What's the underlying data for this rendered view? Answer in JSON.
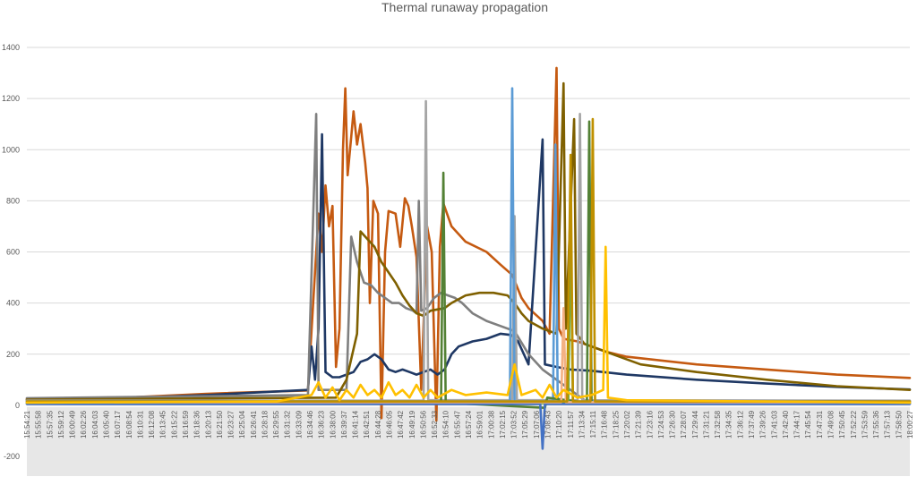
{
  "chart_data": {
    "type": "line",
    "title": "Thermal runaway propagation",
    "xlabel": "",
    "ylabel": "",
    "ylim": [
      -200,
      1400
    ],
    "yticks": [
      -200,
      0,
      200,
      400,
      600,
      800,
      1000,
      1200,
      1400
    ],
    "grid": true,
    "legend": "none",
    "x_start": "15:54:21",
    "x_end": "18:00:27",
    "xtick_labels": [
      "15:54:21",
      "15:55:58",
      "15:57:35",
      "15:59:12",
      "16:00:49",
      "16:02:26",
      "16:04:03",
      "16:05:40",
      "16:07:17",
      "16:08:54",
      "16:10:31",
      "16:12:08",
      "16:13:45",
      "16:15:22",
      "16:16:59",
      "16:18:36",
      "16:20:13",
      "16:21:50",
      "16:23:27",
      "16:25:04",
      "16:26:41",
      "16:28:18",
      "16:29:55",
      "16:31:32",
      "16:33:09",
      "16:34:46",
      "16:36:23",
      "16:38:00",
      "16:39:37",
      "16:41:14",
      "16:42:51",
      "16:44:28",
      "16:46:05",
      "16:47:42",
      "16:49:19",
      "16:50:56",
      "16:52:33",
      "16:54:10",
      "16:55:47",
      "16:57:24",
      "16:59:01",
      "17:00:38",
      "17:02:15",
      "17:03:52",
      "17:05:29",
      "17:07:06",
      "17:08:43",
      "17:10:20",
      "17:11:57",
      "17:13:34",
      "17:15:11",
      "17:16:48",
      "17:18:25",
      "17:20:02",
      "17:21:39",
      "17:23:16",
      "17:24:53",
      "17:26:30",
      "17:28:07",
      "17:29:44",
      "17:31:21",
      "17:32:58",
      "17:34:35",
      "17:36:12",
      "17:37:49",
      "17:39:26",
      "17:41:03",
      "17:42:40",
      "17:44:17",
      "17:45:54",
      "17:47:31",
      "17:49:08",
      "17:50:45",
      "17:52:22",
      "17:53:59",
      "17:55:36",
      "17:57:13",
      "17:58:50",
      "18:00:27"
    ],
    "series": [
      {
        "color": "#c55a11",
        "points": [
          [
            "15:54:21",
            25
          ],
          [
            "16:10:00",
            32
          ],
          [
            "16:20:00",
            45
          ],
          [
            "16:34:30",
            58
          ],
          [
            "16:35:10",
            370
          ],
          [
            "16:36:00",
            750
          ],
          [
            "16:36:30",
            600
          ],
          [
            "16:37:00",
            860
          ],
          [
            "16:37:30",
            700
          ],
          [
            "16:38:00",
            780
          ],
          [
            "16:38:30",
            150
          ],
          [
            "16:39:00",
            300
          ],
          [
            "16:39:30",
            1000
          ],
          [
            "16:39:50",
            1240
          ],
          [
            "16:40:10",
            900
          ],
          [
            "16:40:40",
            1050
          ],
          [
            "16:41:00",
            1150
          ],
          [
            "16:41:30",
            1020
          ],
          [
            "16:42:00",
            1100
          ],
          [
            "16:42:40",
            950
          ],
          [
            "16:43:00",
            850
          ],
          [
            "16:43:20",
            400
          ],
          [
            "16:43:50",
            800
          ],
          [
            "16:44:30",
            750
          ],
          [
            "16:45:00",
            -50
          ],
          [
            "16:45:30",
            600
          ],
          [
            "16:46:00",
            760
          ],
          [
            "16:47:00",
            750
          ],
          [
            "16:47:40",
            620
          ],
          [
            "16:48:20",
            810
          ],
          [
            "16:48:50",
            780
          ],
          [
            "16:49:20",
            700
          ],
          [
            "16:50:00",
            580
          ],
          [
            "16:50:40",
            60
          ],
          [
            "16:51:30",
            700
          ],
          [
            "16:52:10",
            600
          ],
          [
            "16:52:50",
            -60
          ],
          [
            "16:53:20",
            620
          ],
          [
            "16:53:50",
            790
          ],
          [
            "16:55:00",
            700
          ],
          [
            "16:57:00",
            640
          ],
          [
            "17:00:00",
            600
          ],
          [
            "17:02:00",
            550
          ],
          [
            "17:03:40",
            510
          ],
          [
            "17:05:00",
            420
          ],
          [
            "17:06:00",
            380
          ],
          [
            "17:08:00",
            330
          ],
          [
            "17:09:00",
            280
          ],
          [
            "17:10:00",
            1320
          ],
          [
            "17:10:20",
            300
          ],
          [
            "17:11:00",
            260
          ],
          [
            "17:13:00",
            250
          ],
          [
            "17:15:00",
            230
          ],
          [
            "17:17:00",
            210
          ],
          [
            "17:20:00",
            190
          ],
          [
            "17:30:00",
            160
          ],
          [
            "17:40:00",
            140
          ],
          [
            "17:50:00",
            120
          ],
          [
            "18:00:27",
            107
          ]
        ]
      },
      {
        "color": "#1f3864",
        "points": [
          [
            "15:54:21",
            20
          ],
          [
            "16:10:00",
            30
          ],
          [
            "16:20:00",
            40
          ],
          [
            "16:34:30",
            60
          ],
          [
            "16:35:00",
            230
          ],
          [
            "16:35:30",
            100
          ],
          [
            "16:36:00",
            300
          ],
          [
            "16:36:30",
            1060
          ],
          [
            "16:37:00",
            130
          ],
          [
            "16:38:00",
            110
          ],
          [
            "16:39:00",
            110
          ],
          [
            "16:40:00",
            120
          ],
          [
            "16:41:00",
            130
          ],
          [
            "16:42:00",
            170
          ],
          [
            "16:43:00",
            180
          ],
          [
            "16:44:00",
            200
          ],
          [
            "16:45:00",
            180
          ],
          [
            "16:46:00",
            140
          ],
          [
            "16:47:00",
            130
          ],
          [
            "16:48:00",
            140
          ],
          [
            "16:49:00",
            130
          ],
          [
            "16:50:00",
            120
          ],
          [
            "16:51:00",
            130
          ],
          [
            "16:52:00",
            140
          ],
          [
            "16:53:00",
            120
          ],
          [
            "16:54:00",
            140
          ],
          [
            "16:55:00",
            200
          ],
          [
            "16:56:00",
            230
          ],
          [
            "16:58:00",
            250
          ],
          [
            "17:00:00",
            260
          ],
          [
            "17:02:00",
            280
          ],
          [
            "17:03:30",
            275
          ],
          [
            "17:04:30",
            250
          ],
          [
            "17:06:00",
            160
          ],
          [
            "17:08:00",
            1040
          ],
          [
            "17:08:20",
            160
          ],
          [
            "17:10:00",
            150
          ],
          [
            "17:12:00",
            140
          ],
          [
            "17:15:00",
            135
          ],
          [
            "17:20:00",
            120
          ],
          [
            "17:30:00",
            100
          ],
          [
            "17:40:00",
            85
          ],
          [
            "17:50:00",
            72
          ],
          [
            "18:00:27",
            62
          ]
        ]
      },
      {
        "color": "#7f7f7f",
        "points": [
          [
            "15:54:21",
            28
          ],
          [
            "16:34:30",
            40
          ],
          [
            "16:35:40",
            1140
          ],
          [
            "16:36:00",
            60
          ],
          [
            "16:40:00",
            60
          ],
          [
            "16:40:40",
            660
          ],
          [
            "16:41:30",
            560
          ],
          [
            "16:42:30",
            480
          ],
          [
            "16:43:30",
            470
          ],
          [
            "16:44:30",
            440
          ],
          [
            "16:45:30",
            420
          ],
          [
            "16:46:30",
            400
          ],
          [
            "16:47:30",
            400
          ],
          [
            "16:48:30",
            380
          ],
          [
            "16:49:30",
            370
          ],
          [
            "16:50:00",
            360
          ],
          [
            "16:50:20",
            800
          ],
          [
            "16:50:40",
            370
          ],
          [
            "16:51:30",
            380
          ],
          [
            "16:52:30",
            420
          ],
          [
            "16:53:30",
            440
          ],
          [
            "16:54:30",
            430
          ],
          [
            "16:55:30",
            420
          ],
          [
            "16:56:30",
            400
          ],
          [
            "16:58:00",
            360
          ],
          [
            "17:00:00",
            330
          ],
          [
            "17:02:00",
            310
          ],
          [
            "17:04:00",
            290
          ],
          [
            "17:06:00",
            200
          ],
          [
            "17:08:00",
            140
          ],
          [
            "17:10:00",
            100
          ],
          [
            "17:14:00",
            20
          ],
          [
            "18:00:27",
            15
          ]
        ]
      },
      {
        "color": "#7f6000",
        "points": [
          [
            "15:54:21",
            22
          ],
          [
            "16:38:30",
            30
          ],
          [
            "16:40:00",
            100
          ],
          [
            "16:41:30",
            280
          ],
          [
            "16:42:00",
            680
          ],
          [
            "16:43:00",
            650
          ],
          [
            "16:44:00",
            620
          ],
          [
            "16:45:00",
            560
          ],
          [
            "16:46:00",
            520
          ],
          [
            "16:47:00",
            480
          ],
          [
            "16:48:00",
            430
          ],
          [
            "16:49:00",
            390
          ],
          [
            "16:50:00",
            360
          ],
          [
            "16:51:00",
            350
          ],
          [
            "16:52:00",
            370
          ],
          [
            "16:54:00",
            380
          ],
          [
            "16:55:00",
            400
          ],
          [
            "16:57:00",
            430
          ],
          [
            "16:59:00",
            440
          ],
          [
            "17:01:00",
            440
          ],
          [
            "17:03:00",
            430
          ],
          [
            "17:04:00",
            400
          ],
          [
            "17:05:00",
            360
          ],
          [
            "17:06:00",
            330
          ],
          [
            "17:08:00",
            300
          ],
          [
            "17:10:00",
            280
          ],
          [
            "17:11:00",
            1260
          ],
          [
            "17:11:20",
            300
          ],
          [
            "17:12:30",
            1120
          ],
          [
            "17:12:50",
            280
          ],
          [
            "17:14:00",
            240
          ],
          [
            "17:16:00",
            220
          ],
          [
            "17:18:00",
            200
          ],
          [
            "17:22:00",
            160
          ],
          [
            "17:30:00",
            130
          ],
          [
            "17:40:00",
            100
          ],
          [
            "17:50:00",
            75
          ],
          [
            "18:00:27",
            60
          ]
        ]
      },
      {
        "color": "#a5a5a5",
        "points": [
          [
            "15:54:21",
            18
          ],
          [
            "16:51:00",
            18
          ],
          [
            "16:51:20",
            1190
          ],
          [
            "16:51:40",
            20
          ],
          [
            "17:03:40",
            20
          ],
          [
            "17:04:00",
            740
          ],
          [
            "17:04:20",
            20
          ],
          [
            "17:13:00",
            20
          ],
          [
            "17:13:20",
            1140
          ],
          [
            "17:13:40",
            20
          ],
          [
            "18:00:27",
            18
          ]
        ]
      },
      {
        "color": "#5b9bd5",
        "points": [
          [
            "15:54:21",
            15
          ],
          [
            "17:03:20",
            15
          ],
          [
            "17:03:40",
            1240
          ],
          [
            "17:04:00",
            15
          ],
          [
            "17:09:30",
            15
          ],
          [
            "17:09:50",
            1020
          ],
          [
            "17:10:10",
            15
          ],
          [
            "18:00:27",
            15
          ]
        ]
      },
      {
        "color": "#538135",
        "points": [
          [
            "15:54:21",
            10
          ],
          [
            "16:53:30",
            10
          ],
          [
            "16:53:50",
            910
          ],
          [
            "16:54:10",
            10
          ],
          [
            "17:08:20",
            -10
          ],
          [
            "17:08:40",
            30
          ],
          [
            "17:14:20",
            10
          ],
          [
            "17:14:40",
            1110
          ],
          [
            "17:15:00",
            10
          ],
          [
            "18:00:27",
            10
          ]
        ]
      },
      {
        "color": "#70ad47",
        "points": [
          [
            "15:54:21",
            8
          ],
          [
            "17:11:40",
            8
          ],
          [
            "17:12:00",
            700
          ],
          [
            "17:12:20",
            8
          ],
          [
            "18:00:27",
            8
          ]
        ]
      },
      {
        "color": "#4472c4",
        "points": [
          [
            "15:54:21",
            5
          ],
          [
            "17:07:40",
            5
          ],
          [
            "17:08:00",
            -170
          ],
          [
            "17:08:20",
            5
          ],
          [
            "18:00:27",
            5
          ]
        ]
      },
      {
        "color": "#f4b183",
        "points": [
          [
            "15:54:21",
            12
          ],
          [
            "17:10:40",
            12
          ],
          [
            "17:11:00",
            380
          ],
          [
            "17:11:20",
            12
          ],
          [
            "18:00:27",
            12
          ]
        ]
      },
      {
        "color": "#bf9000",
        "points": [
          [
            "15:54:21",
            15
          ],
          [
            "17:11:30",
            15
          ],
          [
            "17:12:00",
            980
          ],
          [
            "17:12:20",
            15
          ],
          [
            "17:14:50",
            15
          ],
          [
            "17:15:10",
            1120
          ],
          [
            "17:15:30",
            15
          ],
          [
            "18:00:27",
            15
          ]
        ]
      },
      {
        "color": "#ffc000",
        "points": [
          [
            "15:54:21",
            10
          ],
          [
            "16:30:00",
            15
          ],
          [
            "16:35:00",
            40
          ],
          [
            "16:36:00",
            90
          ],
          [
            "16:37:00",
            30
          ],
          [
            "16:38:00",
            70
          ],
          [
            "16:39:00",
            20
          ],
          [
            "16:40:00",
            60
          ],
          [
            "16:41:00",
            30
          ],
          [
            "16:42:00",
            80
          ],
          [
            "16:43:00",
            40
          ],
          [
            "16:44:00",
            60
          ],
          [
            "16:45:00",
            30
          ],
          [
            "16:46:00",
            90
          ],
          [
            "16:47:00",
            40
          ],
          [
            "16:48:00",
            60
          ],
          [
            "16:49:00",
            30
          ],
          [
            "16:50:00",
            80
          ],
          [
            "16:51:00",
            30
          ],
          [
            "16:52:00",
            60
          ],
          [
            "16:53:00",
            30
          ],
          [
            "16:55:00",
            60
          ],
          [
            "16:57:00",
            40
          ],
          [
            "17:00:00",
            50
          ],
          [
            "17:03:00",
            40
          ],
          [
            "17:04:00",
            160
          ],
          [
            "17:05:00",
            40
          ],
          [
            "17:07:00",
            60
          ],
          [
            "17:08:00",
            30
          ],
          [
            "17:09:00",
            80
          ],
          [
            "17:10:00",
            30
          ],
          [
            "17:11:00",
            60
          ],
          [
            "17:13:00",
            30
          ],
          [
            "17:15:00",
            40
          ],
          [
            "17:16:40",
            60
          ],
          [
            "17:17:00",
            620
          ],
          [
            "17:17:20",
            30
          ],
          [
            "17:20:00",
            20
          ],
          [
            "18:00:27",
            10
          ]
        ]
      }
    ]
  }
}
